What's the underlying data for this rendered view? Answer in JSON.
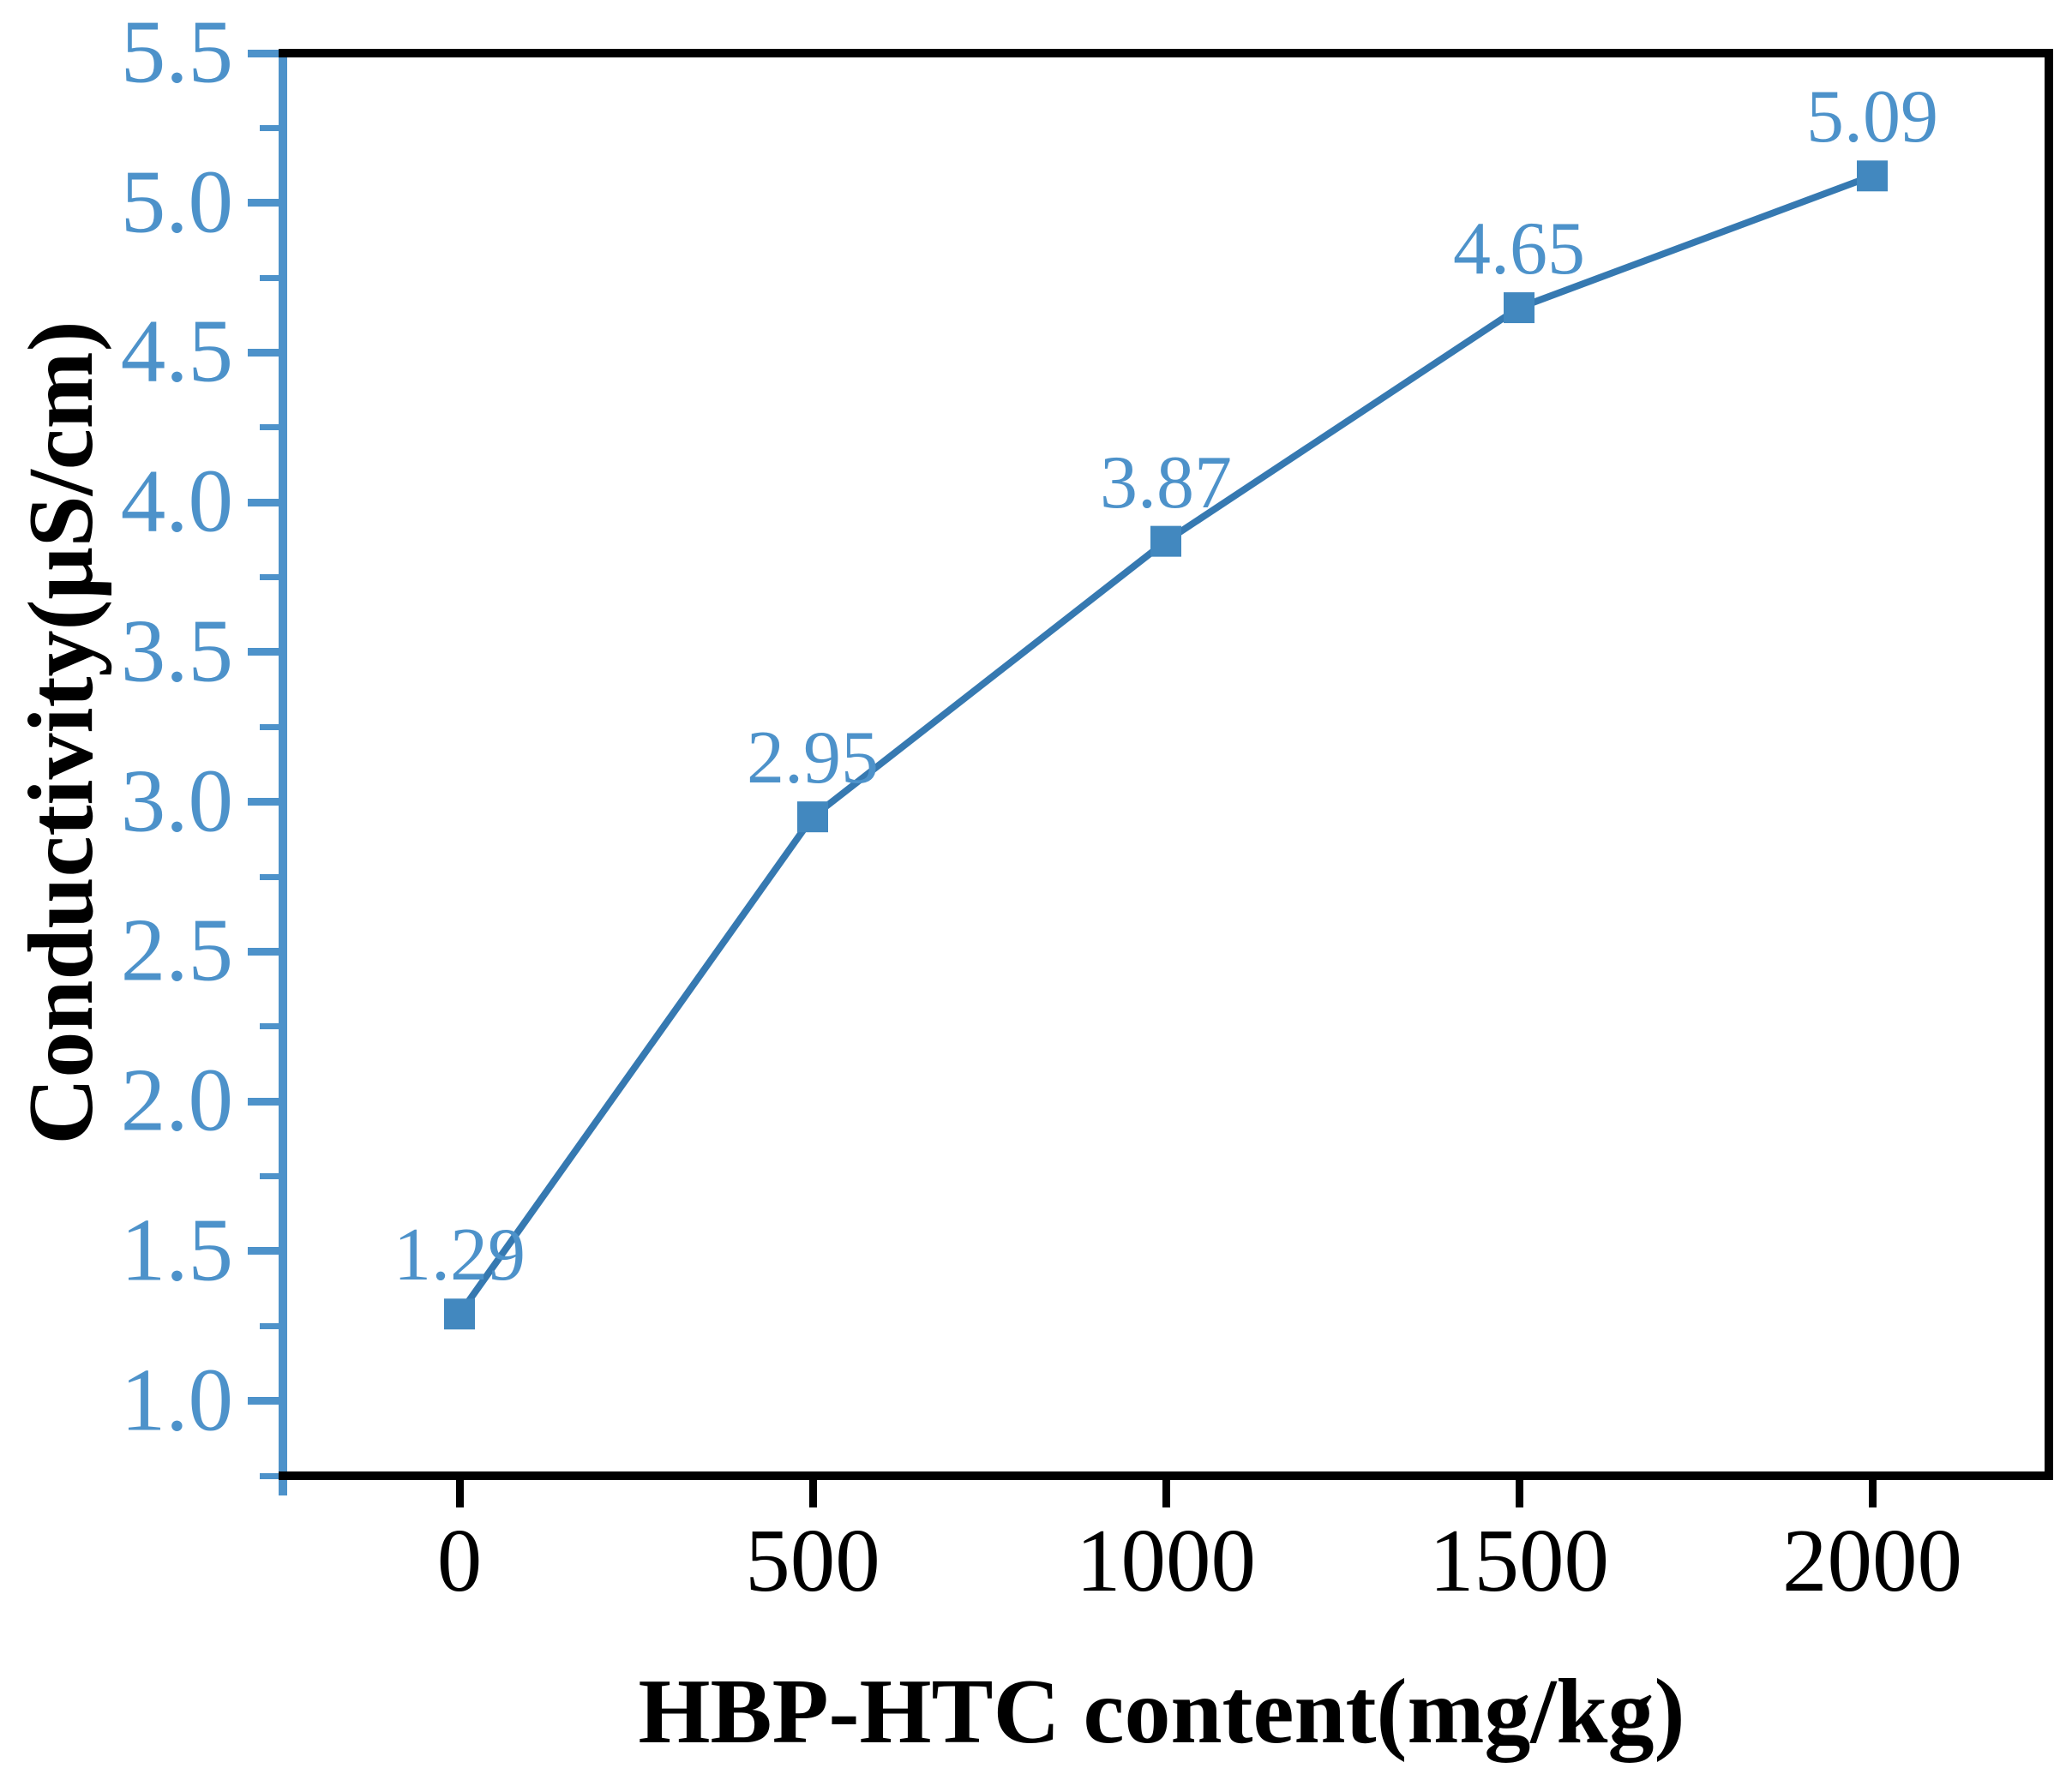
{
  "chart_data": {
    "type": "line",
    "title": "",
    "xlabel": "HBP-HTC content(mg/kg)",
    "ylabel": "Conductivity(μS/cm)",
    "x": [
      0,
      500,
      1000,
      1500,
      2000
    ],
    "y": [
      1.29,
      2.95,
      3.87,
      4.65,
      5.09
    ],
    "point_labels": [
      "1.29",
      "2.95",
      "3.87",
      "4.65",
      "5.09"
    ],
    "marker": "filled-square",
    "line_style": "solid",
    "grid": false,
    "legend": "none",
    "xlim": [
      -250,
      2250
    ],
    "ylim": [
      0.75,
      5.5
    ],
    "x_ticks": {
      "values": [
        0,
        500,
        1000,
        1500,
        2000
      ],
      "labels": [
        "0",
        "500",
        "1000",
        "1500",
        "2000"
      ]
    },
    "y_ticks": {
      "values": [
        1.0,
        1.5,
        2.0,
        2.5,
        3.0,
        3.5,
        4.0,
        4.5,
        5.0,
        5.5
      ],
      "labels": [
        "1.0",
        "1.5",
        "2.0",
        "2.5",
        "3.0",
        "3.5",
        "4.0",
        "4.5",
        "5.0",
        "5.5"
      ]
    },
    "y_minor_ticks": [
      0.75,
      1.25,
      1.75,
      2.25,
      2.75,
      3.25,
      3.75,
      4.25,
      4.75,
      5.25
    ],
    "colors": {
      "line": "#3679b1",
      "marker": "#4288bf",
      "y_axis": "#4d92ca",
      "y_tick_label": "#4d92ca",
      "point_label": "#4d92ca",
      "x_axis": "#000000",
      "x_tick_label": "#000000",
      "axis_title": "#000000",
      "background": "#ffffff"
    }
  }
}
